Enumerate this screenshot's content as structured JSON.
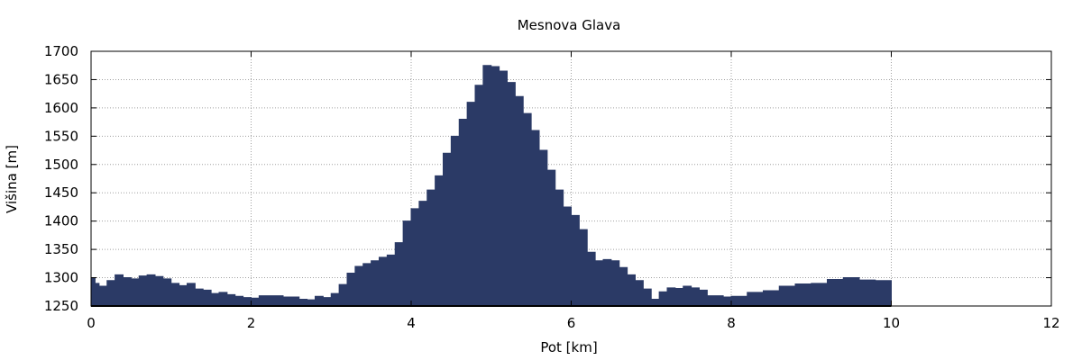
{
  "chart_data": {
    "type": "area",
    "title": "Mesnova Glava",
    "xlabel": "Pot [km]",
    "ylabel": "Višina [m]",
    "xlim": [
      0,
      12
    ],
    "ylim": [
      1250,
      1700
    ],
    "xticks": [
      0,
      2,
      4,
      6,
      8,
      10,
      12
    ],
    "yticks": [
      1250,
      1300,
      1350,
      1400,
      1450,
      1500,
      1550,
      1600,
      1650,
      1700
    ],
    "grid": true,
    "fill_color": "#2b3a66",
    "series": [
      {
        "x": [
          0,
          0.05,
          0.1,
          0.2,
          0.3,
          0.4,
          0.5,
          0.6,
          0.7,
          0.8,
          0.9,
          1.0,
          1.1,
          1.2,
          1.3,
          1.4,
          1.5,
          1.6,
          1.7,
          1.8,
          1.9,
          2.0,
          2.1,
          2.2,
          2.4,
          2.6,
          2.7,
          2.8,
          2.9,
          3.0,
          3.1,
          3.2,
          3.3,
          3.4,
          3.5,
          3.6,
          3.7,
          3.8,
          3.9,
          4.0,
          4.1,
          4.2,
          4.3,
          4.4,
          4.5,
          4.6,
          4.7,
          4.8,
          4.9,
          5.0,
          5.1,
          5.2,
          5.3,
          5.4,
          5.5,
          5.6,
          5.7,
          5.8,
          5.9,
          6.0,
          6.1,
          6.2,
          6.3,
          6.4,
          6.5,
          6.6,
          6.7,
          6.8,
          6.9,
          7.0,
          7.1,
          7.2,
          7.3,
          7.4,
          7.5,
          7.6,
          7.7,
          7.8,
          7.9,
          8.0,
          8.2,
          8.4,
          8.6,
          8.8,
          9.0,
          9.2,
          9.4,
          9.6,
          9.8,
          10.0
        ],
        "y": [
          1300,
          1290,
          1285,
          1295,
          1305,
          1300,
          1298,
          1303,
          1305,
          1302,
          1298,
          1290,
          1286,
          1290,
          1280,
          1278,
          1272,
          1274,
          1270,
          1267,
          1265,
          1264,
          1268,
          1268,
          1266,
          1262,
          1261,
          1267,
          1265,
          1272,
          1288,
          1308,
          1320,
          1325,
          1330,
          1336,
          1340,
          1362,
          1400,
          1422,
          1435,
          1455,
          1480,
          1520,
          1550,
          1580,
          1610,
          1640,
          1675,
          1673,
          1665,
          1645,
          1620,
          1590,
          1560,
          1525,
          1490,
          1455,
          1425,
          1410,
          1385,
          1345,
          1330,
          1332,
          1330,
          1318,
          1305,
          1295,
          1280,
          1262,
          1275,
          1282,
          1281,
          1285,
          1282,
          1278,
          1268,
          1268,
          1266,
          1267,
          1274,
          1277,
          1285,
          1289,
          1290,
          1297,
          1300,
          1296,
          1295,
          1293
        ]
      }
    ]
  }
}
